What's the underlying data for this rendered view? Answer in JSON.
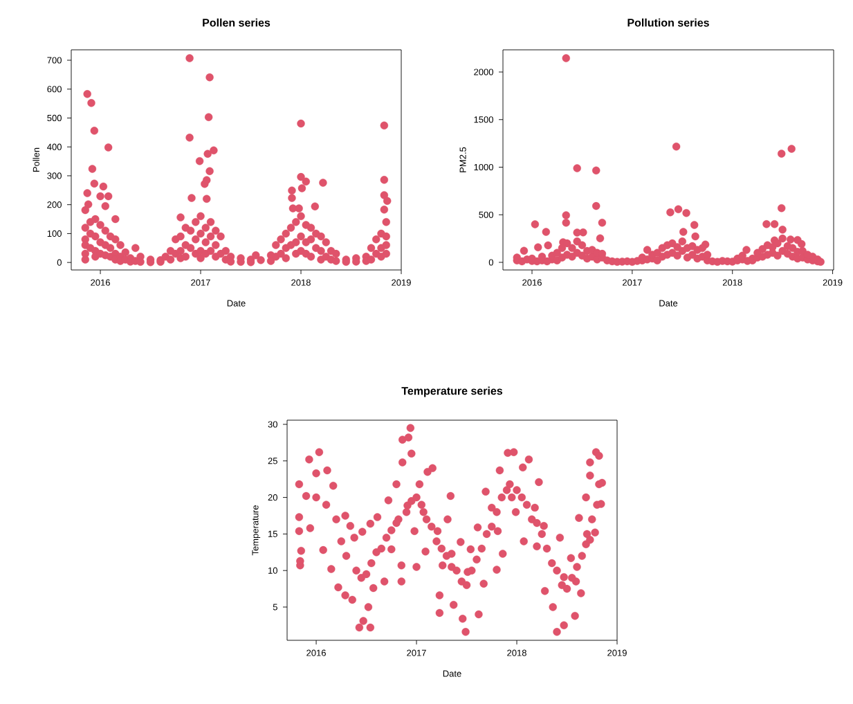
{
  "chart_data": [
    {
      "type": "scatter",
      "title": "Pollen series",
      "xlabel": "Date",
      "ylabel": "Pollen",
      "color": "#df536b",
      "marker": "circle",
      "xlim": [
        2015.71,
        2019.0
      ],
      "ylim": [
        -26,
        736
      ],
      "xticks": [
        2016,
        2017,
        2018,
        2019
      ],
      "yticks": [
        0,
        100,
        200,
        300,
        400,
        500,
        600,
        700
      ],
      "x": [
        2015.87,
        2015.91,
        2015.94,
        2016.08,
        2015.92,
        2015.94,
        2015.87,
        2016.03,
        2016.0,
        2016.08,
        2016.05,
        2015.85,
        2015.88,
        2016.89,
        2017.09,
        2017.08,
        2016.89,
        2017.13,
        2017.07,
        2016.99,
        2017.09,
        2017.06,
        2017.04,
        2016.91,
        2017.06,
        2016.8,
        2018.0,
        2018.0,
        2018.05,
        2018.01,
        2018.22,
        2017.91,
        2017.91,
        2017.92,
        2017.98,
        2018.14,
        2018.83,
        2018.83,
        2018.83,
        2018.86,
        2018.83,
        2015.85,
        2015.85,
        2015.85,
        2015.85,
        2015.85,
        2015.9,
        2015.9,
        2015.9,
        2015.95,
        2015.95,
        2015.95,
        2015.95,
        2016.0,
        2016.0,
        2016.0,
        2016.05,
        2016.05,
        2016.05,
        2016.1,
        2016.1,
        2016.1,
        2016.15,
        2016.15,
        2016.15,
        2016.15,
        2016.2,
        2016.2,
        2016.2,
        2016.25,
        2016.25,
        2016.3,
        2016.3,
        2016.35,
        2016.35,
        2016.4,
        2016.4,
        2016.5,
        2016.5,
        2016.6,
        2016.6,
        2016.65,
        2016.7,
        2016.7,
        2016.75,
        2016.75,
        2016.8,
        2016.8,
        2016.8,
        2016.85,
        2016.85,
        2016.85,
        2016.9,
        2016.9,
        2016.95,
        2016.95,
        2016.95,
        2017.0,
        2017.0,
        2017.0,
        2017.0,
        2017.05,
        2017.05,
        2017.05,
        2017.1,
        2017.1,
        2017.1,
        2017.15,
        2017.15,
        2017.15,
        2017.2,
        2017.2,
        2017.25,
        2017.25,
        2017.3,
        2017.3,
        2017.4,
        2017.4,
        2017.5,
        2017.5,
        2017.55,
        2017.6,
        2017.7,
        2017.7,
        2017.75,
        2017.75,
        2017.8,
        2017.8,
        2017.85,
        2017.85,
        2017.85,
        2017.9,
        2017.9,
        2017.95,
        2017.95,
        2017.95,
        2018.0,
        2018.0,
        2018.0,
        2018.05,
        2018.05,
        2018.05,
        2018.1,
        2018.1,
        2018.1,
        2018.15,
        2018.15,
        2018.2,
        2018.2,
        2018.2,
        2018.25,
        2018.25,
        2018.3,
        2018.3,
        2018.35,
        2018.35,
        2018.45,
        2018.45,
        2018.55,
        2018.55,
        2018.65,
        2018.65,
        2018.7,
        2018.7,
        2018.75,
        2018.75,
        2018.8,
        2018.8,
        2018.8,
        2018.85,
        2018.85,
        2018.85,
        2018.85
      ],
      "values": [
        583,
        552,
        456,
        398,
        324,
        273,
        240,
        263,
        229,
        229,
        195,
        181,
        201,
        707,
        641,
        503,
        432,
        388,
        376,
        351,
        316,
        285,
        272,
        223,
        220,
        156,
        481,
        296,
        280,
        257,
        276,
        249,
        223,
        187,
        187,
        194,
        474,
        286,
        233,
        213,
        183,
        120,
        80,
        30,
        60,
        10,
        140,
        100,
        50,
        150,
        90,
        40,
        20,
        130,
        70,
        30,
        110,
        60,
        25,
        90,
        50,
        20,
        150,
        80,
        30,
        10,
        60,
        20,
        5,
        35,
        10,
        15,
        3,
        50,
        5,
        20,
        2,
        10,
        1,
        8,
        2,
        20,
        40,
        10,
        80,
        30,
        90,
        40,
        15,
        120,
        60,
        20,
        110,
        50,
        140,
        80,
        30,
        160,
        100,
        40,
        15,
        120,
        70,
        30,
        140,
        90,
        40,
        110,
        60,
        20,
        90,
        30,
        40,
        10,
        20,
        3,
        15,
        2,
        10,
        1,
        25,
        8,
        25,
        5,
        60,
        20,
        80,
        30,
        100,
        50,
        15,
        120,
        60,
        140,
        70,
        30,
        160,
        90,
        40,
        130,
        70,
        30,
        120,
        80,
        20,
        100,
        50,
        90,
        40,
        10,
        70,
        20,
        40,
        10,
        30,
        5,
        10,
        2,
        15,
        3,
        20,
        5,
        50,
        10,
        80,
        30,
        100,
        50,
        20,
        140,
        90,
        60,
        30
      ]
    },
    {
      "type": "scatter",
      "title": "Pollution series",
      "xlabel": "Date",
      "ylabel": "PM2.5",
      "color": "#df536b",
      "marker": "circle",
      "xlim": [
        2015.71,
        2019.01
      ],
      "ylim": [
        -80,
        2233
      ],
      "xticks": [
        2016,
        2017,
        2018,
        2019
      ],
      "yticks": [
        0,
        500,
        1000,
        1500,
        2000
      ],
      "x": [
        2016.34,
        2017.44,
        2018.49,
        2018.59,
        2016.45,
        2016.64,
        2016.64,
        2016.34,
        2016.34,
        2016.7,
        2016.03,
        2016.14,
        2016.06,
        2016.16,
        2015.92,
        2017.38,
        2017.46,
        2017.54,
        2017.62,
        2017.63,
        2017.51,
        2018.49,
        2018.34,
        2018.42,
        2018.5,
        2018.14,
        2017.15,
        2016.45,
        2016.51,
        2016.68,
        2016.31,
        2018.69,
        2018.65,
        2018.58,
        2018.42,
        2017.73,
        2015.85,
        2015.85,
        2015.9,
        2015.95,
        2016.0,
        2016.0,
        2016.05,
        2016.1,
        2016.1,
        2016.15,
        2016.2,
        2016.2,
        2016.25,
        2016.25,
        2016.3,
        2016.3,
        2016.35,
        2016.35,
        2016.4,
        2016.4,
        2016.45,
        2016.45,
        2016.5,
        2016.5,
        2016.55,
        2016.55,
        2016.6,
        2016.6,
        2016.65,
        2016.65,
        2016.7,
        2016.7,
        2016.75,
        2016.8,
        2016.85,
        2016.9,
        2016.95,
        2017.0,
        2017.05,
        2017.1,
        2017.1,
        2017.15,
        2017.2,
        2017.2,
        2017.25,
        2017.25,
        2017.3,
        2017.3,
        2017.35,
        2017.35,
        2017.4,
        2017.4,
        2017.45,
        2017.45,
        2017.5,
        2017.5,
        2017.55,
        2017.55,
        2017.6,
        2017.6,
        2017.65,
        2017.65,
        2017.7,
        2017.7,
        2017.75,
        2017.75,
        2017.8,
        2017.85,
        2017.9,
        2017.95,
        2018.0,
        2018.05,
        2018.05,
        2018.1,
        2018.1,
        2018.15,
        2018.2,
        2018.2,
        2018.25,
        2018.25,
        2018.3,
        2018.3,
        2018.35,
        2018.35,
        2018.4,
        2018.4,
        2018.45,
        2018.45,
        2018.5,
        2018.5,
        2018.55,
        2018.55,
        2018.6,
        2018.6,
        2018.65,
        2018.65,
        2018.7,
        2018.7,
        2018.75,
        2018.75,
        2018.8,
        2018.8,
        2018.85,
        2018.85,
        2018.88
      ],
      "values": [
        2145,
        1217,
        1142,
        1193,
        989,
        965,
        592,
        495,
        417,
        417,
        400,
        320,
        158,
        179,
        121,
        526,
        558,
        519,
        393,
        272,
        320,
        570,
        402,
        402,
        344,
        131,
        131,
        313,
        315,
        252,
        211,
        192,
        235,
        240,
        230,
        187,
        20,
        50,
        10,
        30,
        15,
        40,
        10,
        20,
        60,
        10,
        30,
        70,
        20,
        100,
        50,
        150,
        80,
        200,
        60,
        150,
        100,
        220,
        70,
        180,
        40,
        120,
        60,
        130,
        30,
        100,
        50,
        90,
        20,
        10,
        5,
        8,
        10,
        5,
        15,
        20,
        50,
        30,
        40,
        80,
        20,
        100,
        60,
        150,
        80,
        180,
        100,
        200,
        70,
        160,
        120,
        220,
        50,
        150,
        80,
        170,
        40,
        130,
        60,
        150,
        20,
        80,
        10,
        5,
        15,
        10,
        8,
        20,
        40,
        30,
        70,
        15,
        20,
        40,
        50,
        100,
        60,
        140,
        80,
        180,
        100,
        160,
        70,
        200,
        120,
        250,
        90,
        170,
        60,
        150,
        40,
        110,
        50,
        120,
        30,
        80,
        20,
        60,
        10,
        30,
        5
      ]
    },
    {
      "type": "scatter",
      "title": "Temperature series",
      "xlabel": "Date",
      "ylabel": "Temperature",
      "color": "#df536b",
      "marker": "circle",
      "xlim": [
        2015.71,
        2019.0
      ],
      "ylim": [
        0.45,
        30.57
      ],
      "xticks": [
        2016,
        2017,
        2018,
        2019
      ],
      "yticks": [
        5,
        10,
        15,
        20,
        25,
        30
      ],
      "x": [
        2015.84,
        2015.84,
        2015.85,
        2015.83,
        2015.83,
        2015.83,
        2015.93,
        2016.03,
        2016.0,
        2015.9,
        2015.94,
        2016.11,
        2016.17,
        2016.07,
        2016.15,
        2016.22,
        2016.29,
        2016.29,
        2016.34,
        2016.38,
        2016.46,
        2016.36,
        2016.43,
        2016.47,
        2016.54,
        2016.52,
        2016.57,
        2016.54,
        2016.61,
        2016.68,
        2016.72,
        2016.75,
        2016.8,
        2016.85,
        2016.85,
        2016.86,
        2016.92,
        2016.94,
        2016.86,
        2016.95,
        2016.82,
        2016.91,
        2016.98,
        2017.0,
        2017.03,
        2017.11,
        2017.16,
        2017.07,
        2017.09,
        2017.21,
        2017.34,
        2017.31,
        2017.23,
        2017.23,
        2017.26,
        2017.35,
        2017.37,
        2017.44,
        2017.46,
        2017.49,
        2017.51,
        2017.54,
        2017.61,
        2017.62,
        2017.67,
        2017.69,
        2017.75,
        2017.81,
        2017.8,
        2017.86,
        2017.83,
        2017.91,
        2017.97,
        2017.93,
        2017.99,
        2018.07,
        2018.06,
        2018.12,
        2018.22,
        2018.18,
        2018.2,
        2018.27,
        2018.43,
        2018.28,
        2018.36,
        2018.4,
        2018.47,
        2018.47,
        2018.58,
        2018.54,
        2018.59,
        2018.62,
        2018.64,
        2018.69,
        2018.73,
        2018.69,
        2018.73,
        2018.73,
        2018.79,
        2018.82,
        2018.82,
        2018.84,
        2018.78,
        2016.0,
        2016.1,
        2016.2,
        2016.25,
        2016.3,
        2016.4,
        2016.45,
        2016.5,
        2016.55,
        2016.6,
        2016.65,
        2016.7,
        2016.75,
        2016.8,
        2016.9,
        2016.95,
        2017.0,
        2017.05,
        2017.1,
        2017.15,
        2017.2,
        2017.25,
        2017.3,
        2017.35,
        2017.4,
        2017.45,
        2017.5,
        2017.55,
        2017.6,
        2017.65,
        2017.7,
        2017.75,
        2017.8,
        2017.85,
        2017.9,
        2017.95,
        2018.0,
        2018.05,
        2018.1,
        2018.15,
        2018.2,
        2018.25,
        2018.3,
        2018.35,
        2018.4,
        2018.45,
        2018.5,
        2018.55,
        2018.6,
        2018.65,
        2018.7,
        2018.75,
        2018.8,
        2018.85
      ],
      "values": [
        10.7,
        11.3,
        12.7,
        15.4,
        17.3,
        21.8,
        25.2,
        26.2,
        23.3,
        20.2,
        15.8,
        23.7,
        21.6,
        12.8,
        10.2,
        7.7,
        17.5,
        6.6,
        16.1,
        14.5,
        15.3,
        6.0,
        2.2,
        3.1,
        2.2,
        5.0,
        7.6,
        16.4,
        17.3,
        8.5,
        19.6,
        12.9,
        21.8,
        8.5,
        10.7,
        27.9,
        28.2,
        29.5,
        24.8,
        26.0,
        17.0,
        18.9,
        15.4,
        10.5,
        21.8,
        23.5,
        24.0,
        18.0,
        12.6,
        15.4,
        20.2,
        17.0,
        6.6,
        4.2,
        10.7,
        12.3,
        5.3,
        13.9,
        3.4,
        1.6,
        9.8,
        12.9,
        15.9,
        4.0,
        8.2,
        20.8,
        18.6,
        15.4,
        10.1,
        12.3,
        23.7,
        26.1,
        26.2,
        21.8,
        18.0,
        14.0,
        24.1,
        25.2,
        22.1,
        18.6,
        13.3,
        16.1,
        14.5,
        7.2,
        5.0,
        1.6,
        2.5,
        9.1,
        3.8,
        11.7,
        8.5,
        17.2,
        6.9,
        13.6,
        14.2,
        20.0,
        23.0,
        24.8,
        26.2,
        25.7,
        21.8,
        19.1,
        15.2,
        20,
        19,
        17,
        14,
        12,
        10,
        9,
        9.5,
        11,
        12.5,
        13,
        14.5,
        15.5,
        16.5,
        18,
        19.5,
        20,
        19,
        17,
        16,
        14,
        13,
        12,
        10.5,
        10,
        8.5,
        8,
        10,
        11.5,
        13,
        15,
        16,
        18,
        20,
        21,
        20,
        21,
        20,
        19,
        17,
        16.5,
        15,
        13,
        11,
        10,
        8,
        7.5,
        9,
        10.5,
        12,
        15,
        17,
        19,
        22
      ]
    }
  ]
}
